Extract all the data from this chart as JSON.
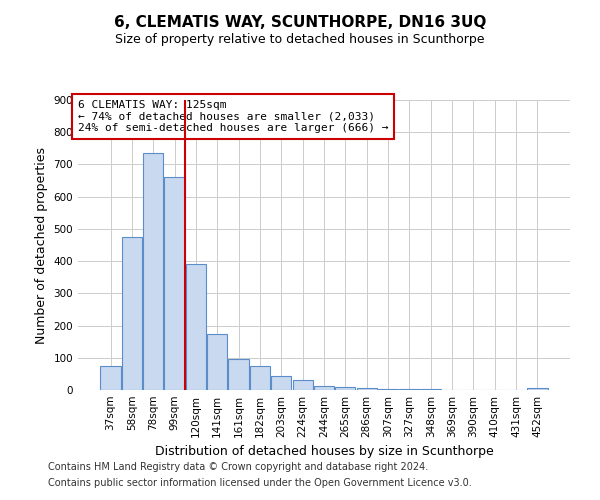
{
  "title": "6, CLEMATIS WAY, SCUNTHORPE, DN16 3UQ",
  "subtitle": "Size of property relative to detached houses in Scunthorpe",
  "xlabel": "Distribution of detached houses by size in Scunthorpe",
  "ylabel": "Number of detached properties",
  "bar_labels": [
    "37sqm",
    "58sqm",
    "78sqm",
    "99sqm",
    "120sqm",
    "141sqm",
    "161sqm",
    "182sqm",
    "203sqm",
    "224sqm",
    "244sqm",
    "265sqm",
    "286sqm",
    "307sqm",
    "327sqm",
    "348sqm",
    "369sqm",
    "390sqm",
    "410sqm",
    "431sqm",
    "452sqm"
  ],
  "bar_heights": [
    75,
    475,
    735,
    660,
    390,
    175,
    95,
    75,
    45,
    32,
    12,
    10,
    7,
    4,
    3,
    2,
    1,
    1,
    1,
    0,
    5
  ],
  "bar_color": "#c9d9f0",
  "bar_edgecolor": "#5b8ec9",
  "vline_x": 3.5,
  "vline_color": "#cc0000",
  "ylim": [
    0,
    900
  ],
  "yticks": [
    0,
    100,
    200,
    300,
    400,
    500,
    600,
    700,
    800,
    900
  ],
  "annotation_box_text_line1": "6 CLEMATIS WAY: 125sqm",
  "annotation_box_text_line2": "← 74% of detached houses are smaller (2,033)",
  "annotation_box_text_line3": "24% of semi-detached houses are larger (666) →",
  "annotation_box_color": "#cc0000",
  "footer_lines": [
    "Contains HM Land Registry data © Crown copyright and database right 2024.",
    "Contains public sector information licensed under the Open Government Licence v3.0."
  ],
  "bg_color": "#ffffff",
  "grid_color": "#cccccc",
  "title_fontsize": 11,
  "subtitle_fontsize": 9,
  "axis_label_fontsize": 9,
  "tick_fontsize": 7.5,
  "annotation_fontsize": 8,
  "footer_fontsize": 7
}
